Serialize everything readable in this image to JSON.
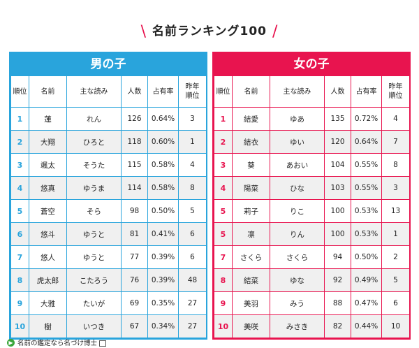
{
  "title": "名前ランキング100",
  "boys": {
    "heading": "男の子",
    "columns": [
      "順位",
      "名前",
      "主な読み",
      "人数",
      "占有率",
      "昨年順位"
    ],
    "rows": [
      {
        "rank": "1",
        "name": "蓮",
        "reading": "れん",
        "count": "126",
        "share": "0.64%",
        "last": "3"
      },
      {
        "rank": "2",
        "name": "大翔",
        "reading": "ひろと",
        "count": "118",
        "share": "0.60%",
        "last": "1"
      },
      {
        "rank": "3",
        "name": "颯太",
        "reading": "そうた",
        "count": "115",
        "share": "0.58%",
        "last": "4"
      },
      {
        "rank": "4",
        "name": "悠真",
        "reading": "ゆうま",
        "count": "114",
        "share": "0.58%",
        "last": "8"
      },
      {
        "rank": "5",
        "name": "蒼空",
        "reading": "そら",
        "count": "98",
        "share": "0.50%",
        "last": "5"
      },
      {
        "rank": "6",
        "name": "悠斗",
        "reading": "ゆうと",
        "count": "81",
        "share": "0.41%",
        "last": "6"
      },
      {
        "rank": "7",
        "name": "悠人",
        "reading": "ゆうと",
        "count": "77",
        "share": "0.39%",
        "last": "6"
      },
      {
        "rank": "8",
        "name": "虎太郎",
        "reading": "こたろう",
        "count": "76",
        "share": "0.39%",
        "last": "48"
      },
      {
        "rank": "9",
        "name": "大雅",
        "reading": "たいが",
        "count": "69",
        "share": "0.35%",
        "last": "27"
      },
      {
        "rank": "10",
        "name": "樹",
        "reading": "いつき",
        "count": "67",
        "share": "0.34%",
        "last": "27"
      }
    ]
  },
  "girls": {
    "heading": "女の子",
    "columns": [
      "順位",
      "名前",
      "主な読み",
      "人数",
      "占有率",
      "昨年順位"
    ],
    "rows": [
      {
        "rank": "1",
        "name": "結愛",
        "reading": "ゆあ",
        "count": "135",
        "share": "0.72%",
        "last": "4"
      },
      {
        "rank": "2",
        "name": "結衣",
        "reading": "ゆい",
        "count": "120",
        "share": "0.64%",
        "last": "7"
      },
      {
        "rank": "3",
        "name": "葵",
        "reading": "あおい",
        "count": "104",
        "share": "0.55%",
        "last": "8"
      },
      {
        "rank": "4",
        "name": "陽菜",
        "reading": "ひな",
        "count": "103",
        "share": "0.55%",
        "last": "3"
      },
      {
        "rank": "5",
        "name": "莉子",
        "reading": "りこ",
        "count": "100",
        "share": "0.53%",
        "last": "13"
      },
      {
        "rank": "5",
        "name": "凛",
        "reading": "りん",
        "count": "100",
        "share": "0.53%",
        "last": "1"
      },
      {
        "rank": "7",
        "name": "さくら",
        "reading": "さくら",
        "count": "94",
        "share": "0.50%",
        "last": "2"
      },
      {
        "rank": "8",
        "name": "結菜",
        "reading": "ゆな",
        "count": "92",
        "share": "0.49%",
        "last": "5"
      },
      {
        "rank": "9",
        "name": "美羽",
        "reading": "みう",
        "count": "88",
        "share": "0.47%",
        "last": "6"
      },
      {
        "rank": "10",
        "name": "美咲",
        "reading": "みさき",
        "count": "82",
        "share": "0.44%",
        "last": "10"
      }
    ]
  },
  "footer": {
    "link": "名前の鑑定なら名づけ博士",
    "icon": "arrow-right-circle-icon",
    "ext_icon": "external-window-icon"
  },
  "colors": {
    "boys_accent": "#29a4dc",
    "girls_accent": "#e8144f"
  }
}
